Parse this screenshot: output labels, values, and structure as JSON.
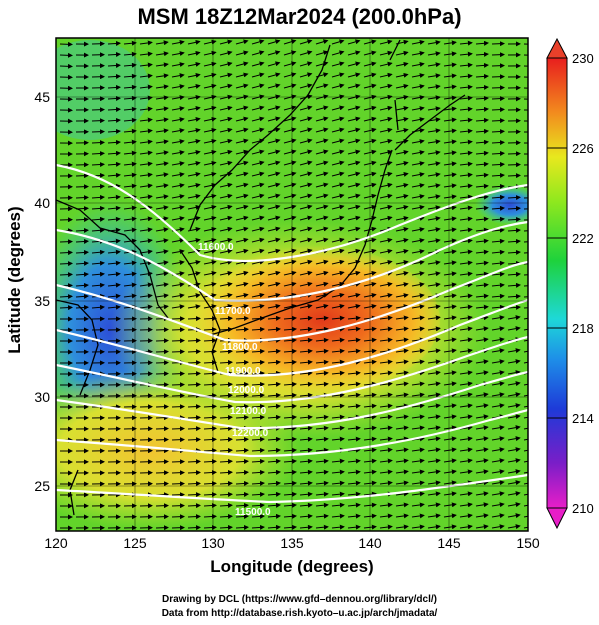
{
  "title": "MSM 18Z12Mar2024 (200.0hPa)",
  "x_axis": {
    "label": "Longitude (degrees)",
    "ticks": [
      "120",
      "125",
      "130",
      "135",
      "140",
      "145",
      "150"
    ]
  },
  "y_axis": {
    "label": "Latitude  (degrees)",
    "ticks": [
      "25",
      "30",
      "35",
      "40",
      "45"
    ]
  },
  "colorbar": {
    "ticks": [
      "210",
      "214",
      "218",
      "222",
      "226",
      "230"
    ]
  },
  "contour_labels": [
    "11600.0",
    "11700.0",
    "11800.0",
    "11900.0",
    "12000.0",
    "12100.0",
    "12200.0",
    "11500.0"
  ],
  "credits": {
    "line1": "Drawing by DCL (https://www.gfd–dennou.org/library/dcl/)",
    "line2": "Data from http://database.rish.kyoto–u.ac.jp/arch/jmadata/"
  },
  "colors": {
    "warm": "#e8401e",
    "mid": "#5ed21e",
    "cool": "#2a6ad8",
    "contour": "#ffffff"
  }
}
